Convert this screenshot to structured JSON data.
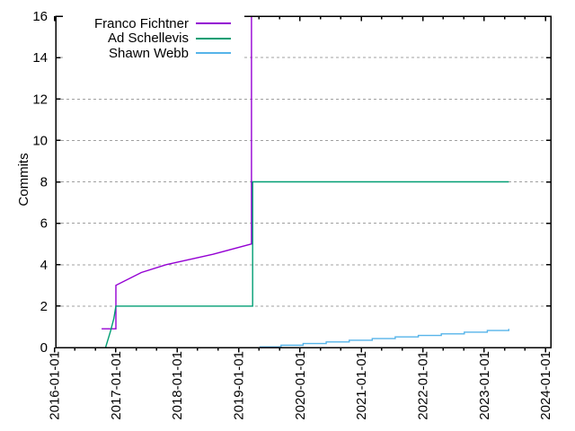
{
  "chart_data": {
    "type": "line",
    "title": "",
    "xlabel": "",
    "ylabel": "Commits",
    "ylim": [
      0,
      16
    ],
    "ytick_interval": 2,
    "ytick_labels": [
      "0",
      "2",
      "4",
      "6",
      "8",
      "10",
      "12",
      "14",
      "16"
    ],
    "xtick_labels": [
      "2016-01-01",
      "2017-01-01",
      "2018-01-01",
      "2019-01-01",
      "2020-01-01",
      "2021-01-01",
      "2022-01-01",
      "2023-01-01",
      "2024-01-01"
    ],
    "minor_xticks_per_year": 3,
    "grid": "horizontal-dashed",
    "legend_position": "top-left-inside-opaque",
    "colors": {
      "background": "#ffffff",
      "axis": "#000000",
      "grid": "#a0a0a0",
      "text": "#000000"
    },
    "series": [
      {
        "name": "Franco Fichtner",
        "color": "#9400D3",
        "points": [
          [
            "2016-10-08",
            0.9
          ],
          [
            "2017-01-02",
            0.9
          ],
          [
            "2017-01-02",
            3.0
          ],
          [
            "2017-06-01",
            3.62
          ],
          [
            "2017-10-26",
            4.0
          ],
          [
            "2018-08-01",
            4.5
          ],
          [
            "2019-03-17",
            5.0
          ],
          [
            "2019-03-17",
            16.5
          ]
        ]
      },
      {
        "name": "Ad Schellevis",
        "color": "#009E73",
        "points": [
          [
            "2016-11-01",
            0.0
          ],
          [
            "2016-12-01",
            0.8
          ],
          [
            "2016-12-20",
            1.4
          ],
          [
            "2017-01-02",
            2.0
          ],
          [
            "2019-03-24",
            2.0
          ],
          [
            "2019-03-24",
            8.0
          ],
          [
            "2023-05-26",
            8.0
          ]
        ]
      },
      {
        "name": "Shawn Webb",
        "color": "#56B4E9",
        "points": [
          [
            "2019-05-04",
            0.03
          ],
          [
            "2019-09-10",
            0.03
          ],
          [
            "2019-09-10",
            0.11
          ],
          [
            "2020-01-20",
            0.11
          ],
          [
            "2020-01-20",
            0.19
          ],
          [
            "2020-06-05",
            0.19
          ],
          [
            "2020-06-05",
            0.27
          ],
          [
            "2020-10-20",
            0.27
          ],
          [
            "2020-10-20",
            0.35
          ],
          [
            "2021-03-05",
            0.35
          ],
          [
            "2021-03-05",
            0.43
          ],
          [
            "2021-07-20",
            0.43
          ],
          [
            "2021-07-20",
            0.51
          ],
          [
            "2021-12-05",
            0.51
          ],
          [
            "2021-12-05",
            0.58
          ],
          [
            "2022-04-20",
            0.58
          ],
          [
            "2022-04-20",
            0.66
          ],
          [
            "2022-09-05",
            0.66
          ],
          [
            "2022-09-05",
            0.74
          ],
          [
            "2023-01-20",
            0.74
          ],
          [
            "2023-01-20",
            0.82
          ],
          [
            "2023-05-26",
            0.82
          ],
          [
            "2023-05-26",
            0.9
          ]
        ]
      }
    ]
  }
}
